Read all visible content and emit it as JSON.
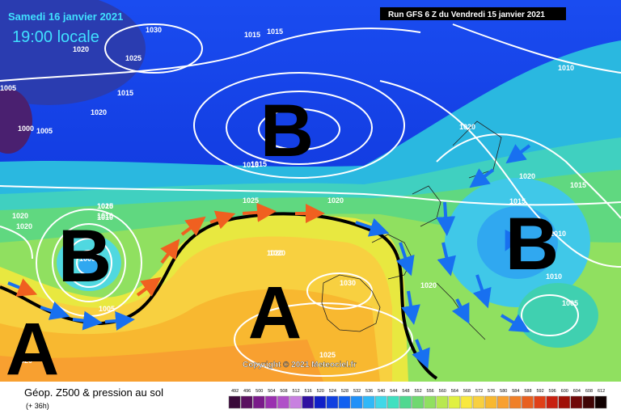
{
  "header": {
    "date": "Samedi 16 janvier 2021",
    "time": "19:00 locale",
    "run": "Run GFS 6 Z du Vendredi 15 janvier 2021"
  },
  "map": {
    "centers": [
      "B",
      "B",
      "B",
      "A",
      "A"
    ],
    "isobar_labels": [
      "1030",
      "1020",
      "1025",
      "1015",
      "1015",
      "1015",
      "1005",
      "1000",
      "1005",
      "1020",
      "1020",
      "1015",
      "1015",
      "1010",
      "1020",
      "1020",
      "1015",
      "1025",
      "1020",
      "1020",
      "1015",
      "1010",
      "1010",
      "1020",
      "1000",
      "1005",
      "1030",
      "1020",
      "1020",
      "1015",
      "1010",
      "1005",
      "1025",
      "1020",
      "1020",
      "1010"
    ],
    "copyright": "Copyright © 2021 Meteociel.fr"
  },
  "legend": {
    "title": "Géop. Z500 & pression au sol",
    "lead": "(+ 36h)",
    "scale": [
      492,
      496,
      500,
      504,
      508,
      512,
      516,
      520,
      524,
      528,
      532,
      536,
      540,
      544,
      548,
      552,
      556,
      560,
      564,
      568,
      572,
      576,
      580,
      584,
      588,
      592,
      596,
      600,
      604,
      608,
      612
    ],
    "colors": [
      "#3a0a3a",
      "#5a1060",
      "#7a1a8a",
      "#9a30b0",
      "#b050c8",
      "#c880e0",
      "#3010a0",
      "#1020c8",
      "#1040e0",
      "#1060f0",
      "#2090f8",
      "#30b8f8",
      "#40d8e8",
      "#40e0c0",
      "#50d890",
      "#70d870",
      "#90e060",
      "#b8e850",
      "#e0f040",
      "#f8e840",
      "#f8d040",
      "#f8b830",
      "#f8a030",
      "#f08028",
      "#e86020",
      "#e04018",
      "#c82010",
      "#a01008",
      "#700808",
      "#400404",
      "#100000"
    ]
  }
}
